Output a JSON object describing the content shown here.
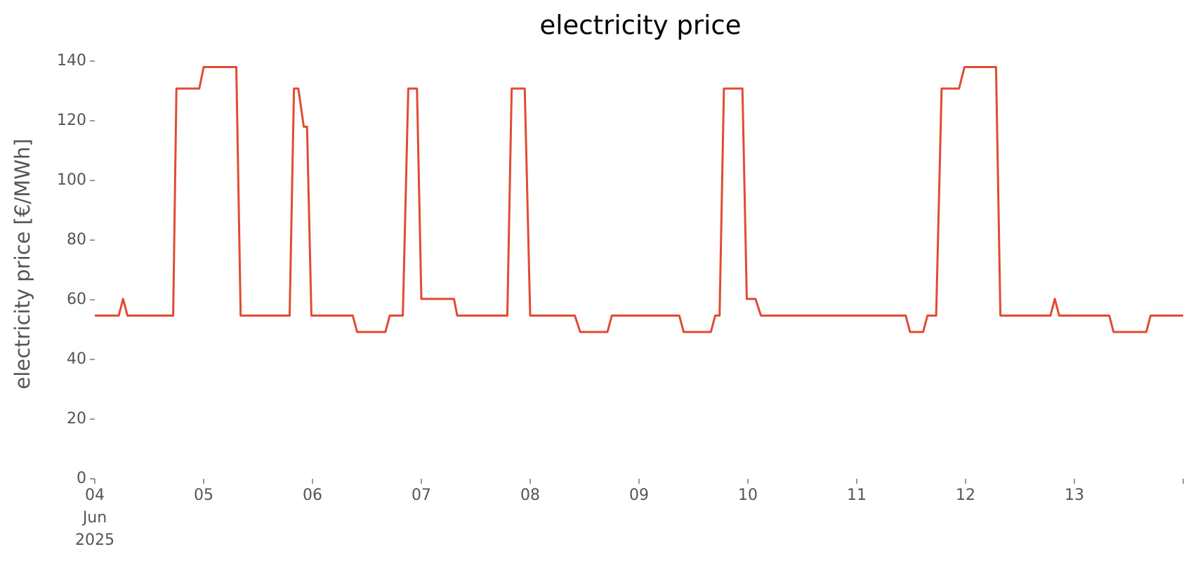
{
  "chart_data": {
    "type": "line",
    "title": "electricity price",
    "ylabel": "electricity price [€/MWh]",
    "x": [
      0,
      0.22,
      0.26,
      0.3,
      0.72,
      0.75,
      0.96,
      1.0,
      1.3,
      1.34,
      1.79,
      1.83,
      1.87,
      1.92,
      1.95,
      1.99,
      2.37,
      2.41,
      2.67,
      2.71,
      2.83,
      2.88,
      2.96,
      3.0,
      3.3,
      3.33,
      3.79,
      3.83,
      3.95,
      4.0,
      4.41,
      4.46,
      4.71,
      4.75,
      5.37,
      5.41,
      5.66,
      5.7,
      5.74,
      5.78,
      5.95,
      5.99,
      6.07,
      6.12,
      7.45,
      7.49,
      7.61,
      7.65,
      7.73,
      7.78,
      7.94,
      7.99,
      8.28,
      8.32,
      8.78,
      8.82,
      8.86,
      9.32,
      9.36,
      9.66,
      9.7,
      10
    ],
    "series": [
      {
        "name": "electricity price",
        "color": "#e24a33",
        "values": [
          54.7,
          54.7,
          60.3,
          54.7,
          54.7,
          130.8,
          130.8,
          138,
          138,
          54.7,
          54.7,
          130.8,
          130.8,
          118,
          118,
          54.7,
          54.7,
          49.2,
          49.2,
          54.7,
          54.7,
          130.8,
          130.8,
          60.3,
          60.3,
          54.7,
          54.7,
          130.8,
          130.8,
          54.7,
          54.7,
          49.2,
          49.2,
          54.7,
          54.7,
          49.2,
          49.2,
          54.7,
          54.7,
          130.8,
          130.8,
          60.3,
          60.3,
          54.7,
          54.7,
          49.2,
          49.2,
          54.7,
          54.7,
          130.8,
          130.8,
          138,
          138,
          54.7,
          54.7,
          60.3,
          54.7,
          54.7,
          49.2,
          49.2,
          54.7,
          54.7
        ]
      }
    ],
    "xlim": [
      0,
      10
    ],
    "xticks": [
      {
        "value": 0,
        "label": "04 Jun 2025"
      },
      {
        "value": 1,
        "label": "05"
      },
      {
        "value": 2,
        "label": "06"
      },
      {
        "value": 3,
        "label": "07"
      },
      {
        "value": 4,
        "label": "08"
      },
      {
        "value": 5,
        "label": "09"
      },
      {
        "value": 6,
        "label": "10"
      },
      {
        "value": 7,
        "label": "11"
      },
      {
        "value": 8,
        "label": "12"
      },
      {
        "value": 9,
        "label": "13"
      }
    ],
    "ylim": [
      0,
      140
    ],
    "yticks": [
      0,
      20,
      40,
      60,
      80,
      100,
      120,
      140
    ],
    "grid": false
  }
}
